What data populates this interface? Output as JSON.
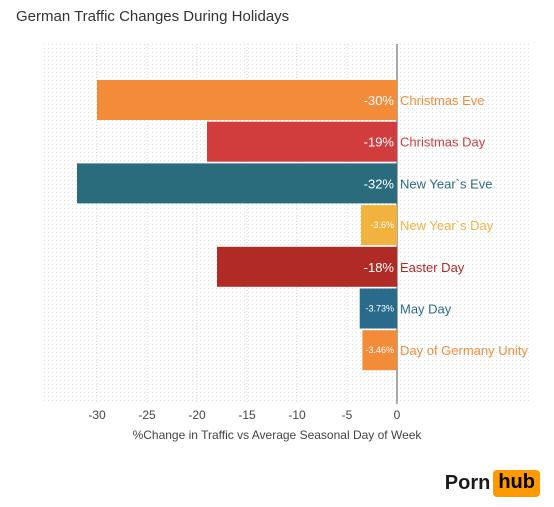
{
  "header": {
    "title": "German Traffic Changes During Holidays"
  },
  "chart_data": {
    "type": "bar",
    "orientation": "horizontal",
    "title": "German Traffic Changes During Holidays",
    "xlabel": "%Change in Traffic vs Average Seasonal Day of Week",
    "ylabel": "",
    "xlim": [
      -35,
      2
    ],
    "xticks": [
      -30,
      -25,
      -20,
      -15,
      -10,
      -5,
      0
    ],
    "grid": true,
    "categories": [
      "Christmas Eve",
      "Christmas Day",
      "New Year`s Eve",
      "New Year`s Day",
      "Easter Day",
      "May Day",
      "Day of Germany Unity"
    ],
    "values": [
      -30,
      -19,
      -32,
      -3.6,
      -18,
      -3.73,
      -3.46
    ],
    "value_labels": [
      "-30%",
      "-19%",
      "-32%",
      "-3.6%",
      "-18%",
      "-3.73%",
      "-3.46%"
    ],
    "colors": [
      "#f28c38",
      "#d13c3c",
      "#2a6b7c",
      "#f2b23e",
      "#b02a26",
      "#2a6b8c",
      "#f28c38"
    ]
  },
  "logo": {
    "part1": "Porn",
    "part2": "hub"
  }
}
